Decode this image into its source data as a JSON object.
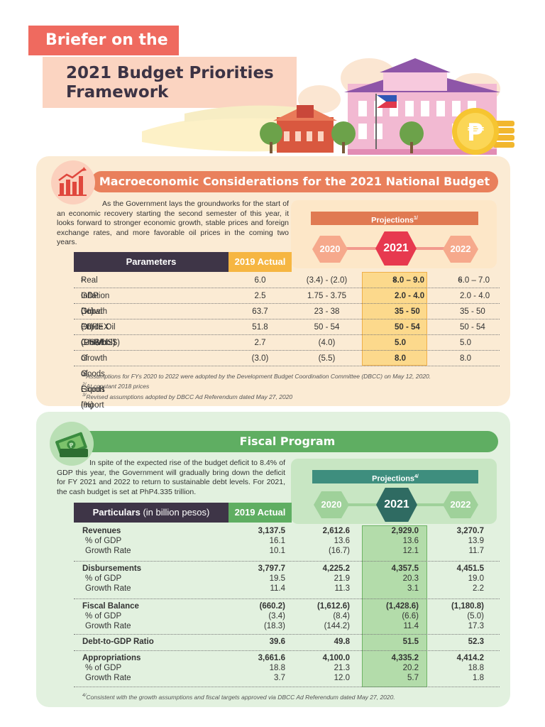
{
  "header": {
    "small_title": "Briefer on the",
    "title_line1": "2021 Budget Priorities",
    "title_line2": "Framework"
  },
  "colors": {
    "coral": "#ef6a5f",
    "peach": "#fbd4c1",
    "macro_panel": "#fbebd4",
    "fiscal_panel": "#e2f1df",
    "dark": "#3e3547",
    "amber": "#f6b642",
    "green": "#5fae62",
    "teal": "#2f6b62",
    "red_hex": "#e7394f"
  },
  "macro": {
    "title": "Macroeconomic Considerations for the 2021 National Budget",
    "intro": "As the Government lays the groundworks for the start of an economic recovery starting the second semester of this year, it looks forward to stronger economic growth, stable prices and foreign exchange rates, and more favorable oil prices in the coming two years.",
    "projections_label": "Projections",
    "projections_note": "1/",
    "years": [
      "2020",
      "2021",
      "2022"
    ],
    "col_parameters": "Parameters",
    "col_actual": "2019 Actual",
    "rows": [
      {
        "label": "Real GDP Growth (%)",
        "sup": "2/",
        "actual": "6.0",
        "y2020": "(3.4) - (2.0)",
        "y2021": "8.0 – 9.0",
        "y2021_sup": "3/",
        "y2022": "6.0 – 7.0",
        "y2022_sup": "3/"
      },
      {
        "label": "Inflation (%)",
        "sup": "",
        "actual": "2.5",
        "y2020": "1.75 - 3.75",
        "y2021": "2.0 - 4.0",
        "y2021_sup": "",
        "y2022": "2.0 - 4.0",
        "y2022_sup": ""
      },
      {
        "label": "Dubai Crude Oil (US$/bbl)",
        "sup": "",
        "actual": "63.7",
        "y2020": "23 - 38",
        "y2021": "35 - 50",
        "y2021_sup": "",
        "y2022": "35 - 50",
        "y2022_sup": ""
      },
      {
        "label": "FOREX (PhP/US$)",
        "sup": "",
        "actual": "51.8",
        "y2020": "50 - 54",
        "y2021": "50 - 54",
        "y2021_sup": "",
        "y2022": "50 - 54",
        "y2022_sup": ""
      },
      {
        "label": "Growth of Goods Export (%)",
        "sup": "",
        "actual": "2.7",
        "y2020": "(4.0)",
        "y2021": "5.0",
        "y2021_sup": "",
        "y2022": "5.0",
        "y2022_sup": ""
      },
      {
        "label": "Growth of Goods Import (%)",
        "sup": "",
        "actual": "(3.0)",
        "y2020": "(5.5)",
        "y2021": "8.0",
        "y2021_sup": "",
        "y2022": "8.0",
        "y2022_sup": ""
      }
    ],
    "notes": [
      {
        "mark": "1/",
        "text": "Assumptions for FYs 2020 to 2022 were adopted by the Development Budget Coordination Committee (DBCC) on May 12, 2020."
      },
      {
        "mark": "2/",
        "text": "At constant 2018 prices"
      },
      {
        "mark": "3/",
        "text": "Revised assumptions adopted by DBCC Ad Referendum dated May 27, 2020"
      }
    ]
  },
  "fiscal": {
    "title": "Fiscal Program",
    "intro": "In spite of the expected rise of the budget deficit to 8.4% of GDP this year, the Government will gradually bring down the deficit for FY 2021 and 2022 to return to sustainable debt levels. For 2021, the cash budget is set at PhP4.335 trillion.",
    "projections_label": "Projections",
    "projections_note": "4/",
    "years": [
      "2020",
      "2021",
      "2022"
    ],
    "col_particulars": "Particulars",
    "col_particulars_unit": "(in billion pesos)",
    "col_actual": "2019 Actual",
    "groups": [
      {
        "lines": [
          {
            "label": "Revenues",
            "main": true,
            "v": [
              "3,137.5",
              "2,612.6",
              "2,929.0",
              "3,270.7"
            ]
          },
          {
            "label": "% of GDP",
            "main": false,
            "v": [
              "16.1",
              "13.6",
              "13.6",
              "13.9"
            ]
          },
          {
            "label": "Growth Rate",
            "main": false,
            "v": [
              "10.1",
              "(16.7)",
              "12.1",
              "11.7"
            ]
          }
        ]
      },
      {
        "lines": [
          {
            "label": "Disbursements",
            "main": true,
            "v": [
              "3,797.7",
              "4,225.2",
              "4,357.5",
              "4,451.5"
            ]
          },
          {
            "label": "% of GDP",
            "main": false,
            "v": [
              "19.5",
              "21.9",
              "20.3",
              "19.0"
            ]
          },
          {
            "label": "Growth Rate",
            "main": false,
            "v": [
              "11.4",
              "11.3",
              "3.1",
              "2.2"
            ]
          }
        ]
      },
      {
        "lines": [
          {
            "label": "Fiscal Balance",
            "main": true,
            "v": [
              "(660.2)",
              "(1,612.6)",
              "(1,428.6)",
              "(1,180.8)"
            ]
          },
          {
            "label": "% of GDP",
            "main": false,
            "v": [
              "(3.4)",
              "(8.4)",
              "(6.6)",
              "(5.0)"
            ]
          },
          {
            "label": "Growth Rate",
            "main": false,
            "v": [
              "(18.3)",
              "(144.2)",
              "11.4",
              "17.3"
            ]
          }
        ]
      },
      {
        "lines": [
          {
            "label": "Debt-to-GDP Ratio",
            "main": true,
            "v": [
              "39.6",
              "49.8",
              "51.5",
              "52.3"
            ]
          }
        ]
      },
      {
        "lines": [
          {
            "label": "Appropriations",
            "main": true,
            "v": [
              "3,661.6",
              "4,100.0",
              "4,335.2",
              "4,414.2"
            ]
          },
          {
            "label": "% of GDP",
            "main": false,
            "v": [
              "18.8",
              "21.3",
              "20.2",
              "18.8"
            ]
          },
          {
            "label": "Growth Rate",
            "main": false,
            "v": [
              "3.7",
              "12.0",
              "5.7",
              "1.8"
            ]
          }
        ]
      }
    ],
    "notes": [
      {
        "mark": "4/",
        "text": "Consistent with the growth assumptions and fiscal targets approved via DBCC Ad Referendum dated May 27, 2020."
      }
    ]
  }
}
